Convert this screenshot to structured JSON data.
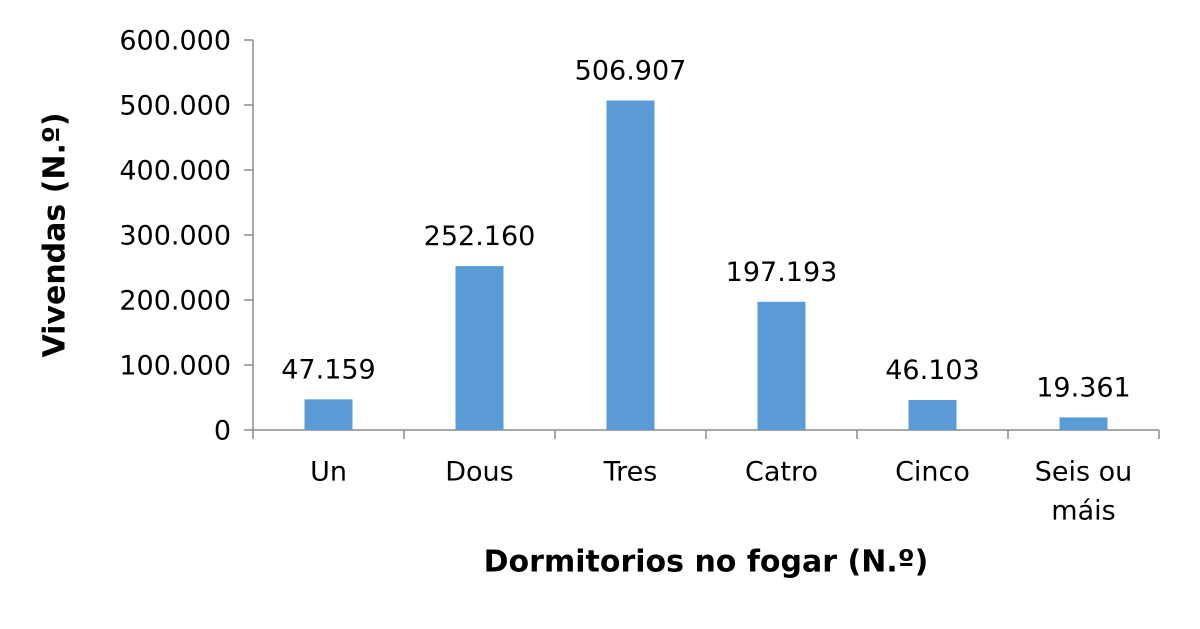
{
  "chart_data": {
    "type": "bar",
    "title": "",
    "xlabel": "Dormitorios no fogar (N.º)",
    "ylabel": "Vivendas (N.º)",
    "categories": [
      [
        "Un"
      ],
      [
        "Dous"
      ],
      [
        "Tres"
      ],
      [
        "Catro"
      ],
      [
        "Cinco"
      ],
      [
        "Seis ou",
        "máis"
      ]
    ],
    "values": [
      47159,
      252160,
      506907,
      197193,
      46103,
      19361
    ],
    "data_labels": [
      "47.159",
      "252.160",
      "506.907",
      "197.193",
      "46.103",
      "19.361"
    ],
    "ylim": [
      0,
      600000
    ],
    "yticks": [
      0,
      100000,
      200000,
      300000,
      400000,
      500000,
      600000
    ],
    "ytick_labels": [
      "0",
      "100.000",
      "200.000",
      "300.000",
      "400.000",
      "500.000",
      "600.000"
    ],
    "grid": false,
    "legend": "none",
    "bar_color": "#5B9BD5",
    "axis_color": "#8C8C8C"
  }
}
